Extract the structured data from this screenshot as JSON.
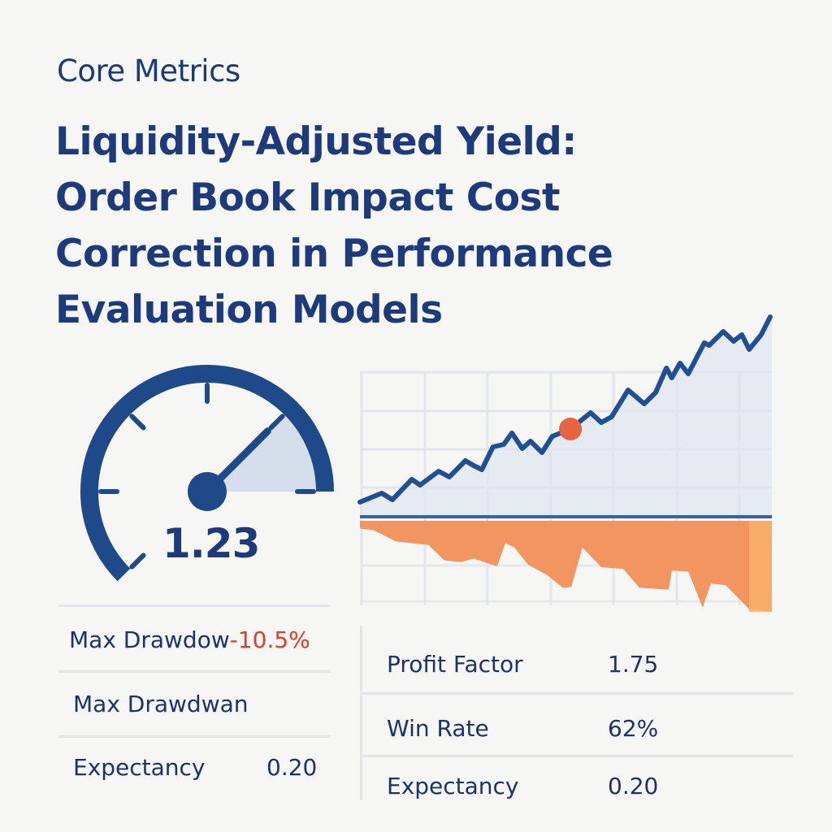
{
  "header": {
    "subtitle": "Core Metrics",
    "title_lines": [
      "Liquidity-Adjusted Yield:",
      "Order Book Impact Cost",
      "Correction in Performance",
      "Evaluation Models"
    ]
  },
  "gauge": {
    "value": "1.23",
    "needle_fraction": 0.8,
    "colors": {
      "arc": "#1f4a8a",
      "fill": "#d5deea"
    }
  },
  "left_metrics": [
    {
      "label": "Max Drawdow",
      "value": "-10.5%"
    },
    {
      "label": "Max Drawdwan",
      "value": ""
    },
    {
      "label": "Expectancy",
      "value": "0.20"
    }
  ],
  "right_metrics": [
    {
      "label": "Profit Factor",
      "value": "1.75"
    },
    {
      "label": "Win Rate",
      "value": "62%"
    },
    {
      "label": "Expectancy",
      "value": "0.20"
    }
  ],
  "colors": {
    "text": "#1c3a78",
    "negative": "#e33a2a",
    "line": "#1f4f94",
    "drawdown": "#f39560",
    "marker": "#e8643f"
  },
  "chart_data": {
    "type": "area",
    "grid": true,
    "series": [
      {
        "kind": "equity-line",
        "x": [
          0,
          5.3,
          7.9,
          12.6,
          14.6,
          19.1,
          21.7,
          25.6,
          27.6,
          29.6,
          32.3,
          34.9,
          36.9,
          39.4,
          41.4,
          44.2,
          46.7,
          51.1,
          56.0,
          58.6,
          61.1,
          65.1,
          69.0,
          71.8,
          74.4,
          75.7,
          77.7,
          79.7,
          83.6,
          84.8,
          88.2,
          90.7,
          92.7,
          94.5,
          97.4,
          99.6
        ],
        "values": [
          6.4,
          10.8,
          7.6,
          17.6,
          14.8,
          21.6,
          18.8,
          26.8,
          24.4,
          22.4,
          33.6,
          34.8,
          40.4,
          32.8,
          36.4,
          30.8,
          38.8,
          42.4,
          50.4,
          45.6,
          48.4,
          61.6,
          54.8,
          60.4,
          72.4,
          67.6,
          74.8,
          69.6,
          84.8,
          83.6,
          90.4,
          85.6,
          88.8,
          81.6,
          88.8,
          97.6
        ]
      },
      {
        "kind": "drawdown-area",
        "x": [
          0,
          3.4,
          8.7,
          16.6,
          20.5,
          24.5,
          27.6,
          33.3,
          35.3,
          37.5,
          40.8,
          45.4,
          49.3,
          51.3,
          54.0,
          58.6,
          63.9,
          67.9,
          75.0,
          75.7,
          79.7,
          83.2,
          85.2,
          88.8,
          94.5,
          99.6
        ],
        "values": [
          -0.9,
          -1.1,
          -2.4,
          -2.8,
          -4.6,
          -4.8,
          -4.4,
          -5.3,
          -2.6,
          -3.1,
          -5.1,
          -6.3,
          -7.8,
          -7.7,
          -3.1,
          -5.4,
          -5.6,
          -7.8,
          -8.0,
          -5.8,
          -5.9,
          -10.1,
          -7.3,
          -7.5,
          -10.3,
          -10.5
        ]
      }
    ],
    "highlight_point": {
      "x": 51.1,
      "value": 42.4
    }
  }
}
